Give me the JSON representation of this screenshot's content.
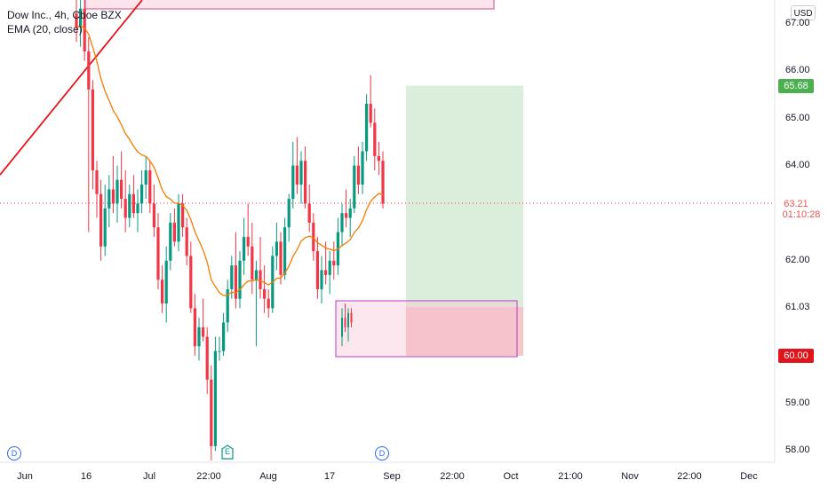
{
  "legend": {
    "symbol_line": "Dow Inc., 4h, Cboe BZX",
    "indicator_line": "EMA (20, close)"
  },
  "currency_badge": "USD",
  "price_axis_ticks": [
    "67.00",
    "66.00",
    "65.00",
    "64.00",
    "62.00",
    "61.03",
    "59.00",
    "58.00"
  ],
  "time_axis_ticks": [
    "Jun",
    "16",
    "Jul",
    "22:00",
    "Aug",
    "17",
    "Sep",
    "22:00",
    "Oct",
    "21:00",
    "Nov",
    "22:00",
    "Dec"
  ],
  "price_tags": {
    "take_profit": "65.68",
    "current": "63.21",
    "countdown": "01:10:28",
    "stop_loss": "60.00"
  },
  "events": {
    "dividend_label": "D",
    "earnings_label": "E"
  },
  "colors": {
    "up_candle": "#089981",
    "down_candle": "#f23645",
    "ema": "#f57c00",
    "trendline": "#e8141d",
    "profit_zone": "#d7ecd7",
    "loss_zone": "#f4c1c4",
    "demand_box_border": "#b33dc6",
    "current_price": "#f23645",
    "stop_tag": "#e0141b",
    "target_tag": "#4caf50"
  },
  "chart_data": {
    "type": "candlestick",
    "title": "Dow Inc., 4h, Cboe BZX",
    "indicator": "EMA (20, close)",
    "currency": "USD",
    "y_range": [
      57.8,
      67.5
    ],
    "x_labels": [
      "Jun",
      "16",
      "Jul",
      "22:00",
      "Aug",
      "17",
      "Sep",
      "22:00",
      "Oct",
      "21:00",
      "Nov",
      "22:00",
      "Dec"
    ],
    "last_price": 63.21,
    "long_position": {
      "entry": 61.03,
      "stop": 60.0,
      "target": 65.68
    },
    "events": [
      {
        "type": "dividend",
        "label": "D"
      },
      {
        "type": "earnings",
        "label": "E"
      },
      {
        "type": "dividend",
        "label": "D"
      }
    ],
    "candles": [
      [
        67.2,
        67.8,
        66.6,
        66.9
      ],
      [
        66.9,
        67.5,
        66.5,
        67.3
      ],
      [
        67.3,
        67.8,
        66.2,
        66.4
      ],
      [
        66.4,
        66.7,
        62.6,
        65.6
      ],
      [
        65.6,
        65.8,
        63.5,
        63.9
      ],
      [
        63.9,
        64.1,
        62.9,
        63.4
      ],
      [
        63.4,
        63.7,
        62.0,
        62.3
      ],
      [
        62.3,
        63.6,
        62.1,
        63.1
      ],
      [
        63.1,
        63.8,
        62.7,
        63.5
      ],
      [
        63.5,
        64.2,
        63.0,
        63.2
      ],
      [
        63.2,
        64.0,
        62.8,
        63.7
      ],
      [
        63.7,
        64.3,
        63.1,
        63.3
      ],
      [
        63.3,
        63.9,
        62.6,
        62.9
      ],
      [
        62.9,
        63.6,
        62.7,
        63.4
      ],
      [
        63.4,
        63.8,
        62.9,
        63.0
      ],
      [
        63.0,
        63.5,
        62.6,
        63.2
      ],
      [
        63.2,
        63.9,
        63.0,
        63.6
      ],
      [
        63.6,
        64.2,
        63.3,
        63.9
      ],
      [
        63.9,
        64.1,
        63.0,
        63.2
      ],
      [
        63.2,
        63.6,
        62.5,
        62.7
      ],
      [
        62.7,
        63.0,
        61.4,
        61.6
      ],
      [
        61.6,
        61.9,
        60.9,
        61.1
      ],
      [
        61.1,
        62.3,
        60.7,
        62.0
      ],
      [
        62.0,
        63.0,
        61.8,
        62.8
      ],
      [
        62.8,
        63.1,
        62.3,
        62.4
      ],
      [
        62.4,
        63.4,
        62.2,
        63.2
      ],
      [
        63.2,
        63.4,
        62.5,
        62.7
      ],
      [
        62.7,
        62.9,
        61.9,
        62.1
      ],
      [
        62.1,
        62.4,
        60.9,
        61.0
      ],
      [
        61.0,
        61.3,
        60.0,
        60.2
      ],
      [
        60.2,
        60.8,
        59.9,
        60.6
      ],
      [
        60.6,
        61.2,
        60.3,
        60.4
      ],
      [
        60.4,
        60.6,
        59.2,
        59.5
      ],
      [
        59.5,
        59.8,
        57.8,
        58.1
      ],
      [
        58.1,
        60.4,
        58.0,
        60.1
      ],
      [
        60.1,
        60.4,
        59.9,
        60.1
      ],
      [
        60.1,
        60.9,
        60.0,
        60.7
      ],
      [
        60.7,
        61.6,
        60.5,
        61.4
      ],
      [
        61.4,
        62.1,
        61.2,
        61.9
      ],
      [
        61.9,
        62.6,
        61.0,
        61.2
      ],
      [
        61.2,
        62.2,
        61.0,
        62.0
      ],
      [
        62.0,
        62.9,
        61.7,
        62.5
      ],
      [
        62.5,
        63.2,
        62.1,
        62.3
      ],
      [
        62.3,
        62.8,
        61.3,
        61.6
      ],
      [
        61.6,
        62.0,
        60.2,
        61.8
      ],
      [
        61.8,
        62.5,
        61.2,
        61.4
      ],
      [
        61.4,
        61.9,
        60.9,
        61.2
      ],
      [
        61.2,
        61.4,
        60.8,
        61.0
      ],
      [
        61.0,
        62.3,
        60.9,
        62.1
      ],
      [
        62.1,
        62.8,
        61.8,
        62.4
      ],
      [
        62.4,
        62.6,
        61.5,
        61.7
      ],
      [
        61.7,
        62.9,
        61.6,
        62.7
      ],
      [
        62.7,
        63.4,
        62.4,
        63.3
      ],
      [
        63.3,
        64.5,
        63.1,
        64.0
      ],
      [
        64.0,
        64.6,
        63.4,
        63.6
      ],
      [
        63.6,
        64.3,
        63.2,
        64.1
      ],
      [
        64.1,
        64.4,
        63.1,
        63.2
      ],
      [
        63.2,
        63.6,
        62.6,
        62.8
      ],
      [
        62.8,
        63.0,
        62.0,
        62.2
      ],
      [
        62.2,
        62.5,
        61.2,
        61.4
      ],
      [
        61.4,
        62.1,
        61.1,
        61.8
      ],
      [
        61.8,
        62.4,
        61.5,
        61.7
      ],
      [
        61.7,
        62.2,
        61.3,
        62.0
      ],
      [
        62.0,
        62.4,
        61.6,
        61.9
      ],
      [
        61.9,
        62.9,
        61.7,
        62.6
      ],
      [
        62.6,
        63.2,
        62.3,
        63.0
      ],
      [
        63.0,
        63.5,
        62.7,
        62.9
      ],
      [
        62.9,
        63.3,
        62.5,
        63.1
      ],
      [
        63.1,
        64.2,
        63.0,
        64.0
      ],
      [
        64.0,
        64.4,
        63.4,
        63.6
      ],
      [
        63.6,
        64.5,
        63.4,
        64.3
      ],
      [
        64.3,
        65.5,
        64.1,
        65.3
      ],
      [
        65.3,
        65.9,
        64.8,
        64.9
      ],
      [
        64.9,
        65.2,
        63.9,
        64.2
      ],
      [
        64.2,
        64.5,
        63.8,
        64.1
      ],
      [
        64.1,
        64.3,
        63.1,
        63.2
      ]
    ]
  }
}
